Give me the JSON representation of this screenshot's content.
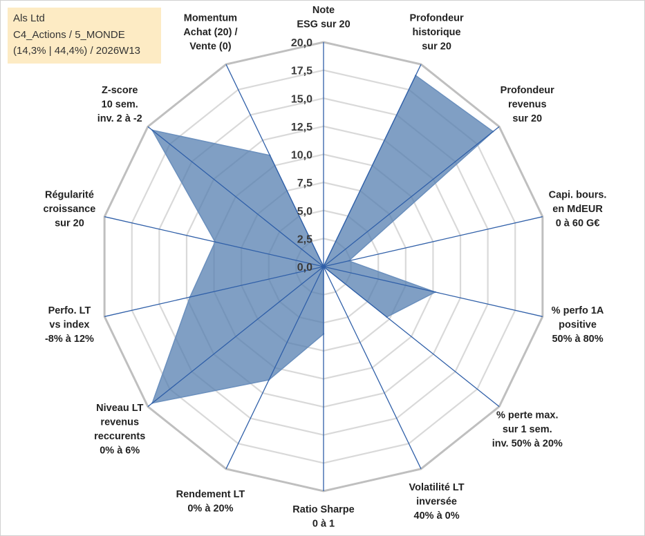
{
  "header": {
    "line1": "Als Ltd",
    "line2": "C4_Actions / 5_MONDE",
    "line3": "(14,3% | 44,4%) / 2026W13"
  },
  "chart_data": {
    "type": "radar",
    "title": "",
    "rmin": 0,
    "rmax": 20,
    "tick_step": 2.5,
    "ticks": [
      "0,0",
      "2,5",
      "5,0",
      "7,5",
      "10,0",
      "12,5",
      "15,0",
      "17,5",
      "20,0"
    ],
    "axes": [
      [
        "Note",
        "ESG sur 20"
      ],
      [
        "Profondeur",
        "historique",
        "sur 20"
      ],
      [
        "Profondeur",
        "revenus",
        "sur 20"
      ],
      [
        "Capi. bours.",
        "en MdEUR",
        "0 à 60 G€"
      ],
      [
        "% perfo 1A",
        "positive",
        "50% à 80%"
      ],
      [
        "% perte max.",
        "sur 1 sem.",
        "inv. 50% à 20%"
      ],
      [
        "Volatilité LT",
        "inversée",
        "40% à 0%"
      ],
      [
        "Ratio Sharpe",
        "0 à 1"
      ],
      [
        "Rendement LT",
        "0% à 20%"
      ],
      [
        "Niveau LT",
        "revenus",
        "reccurents",
        "0% à 6%"
      ],
      [
        "Perfo. LT",
        "vs index",
        "-8% à 12%"
      ],
      [
        "Régularité",
        "croissance",
        "sur 20"
      ],
      [
        "Z-score",
        "10 sem.",
        "inv. 2 à -2"
      ],
      [
        "Momentum",
        "Achat (20) /",
        "Vente (0)"
      ]
    ],
    "series": [
      {
        "name": "Als Ltd",
        "values": [
          0,
          18.9,
          19.3,
          2.3,
          10.2,
          7.2,
          0,
          6.0,
          11.2,
          19.5,
          12.2,
          9.9,
          19.5,
          11.0
        ]
      }
    ],
    "colors": {
      "fill": "#4f7aad",
      "fill_opacity": 0.72,
      "stroke": "#6a8fbd",
      "spokes": "#2f5fa8",
      "outer_ring": "#bfbfbf",
      "inner_rings": "#d9d9d9"
    }
  }
}
